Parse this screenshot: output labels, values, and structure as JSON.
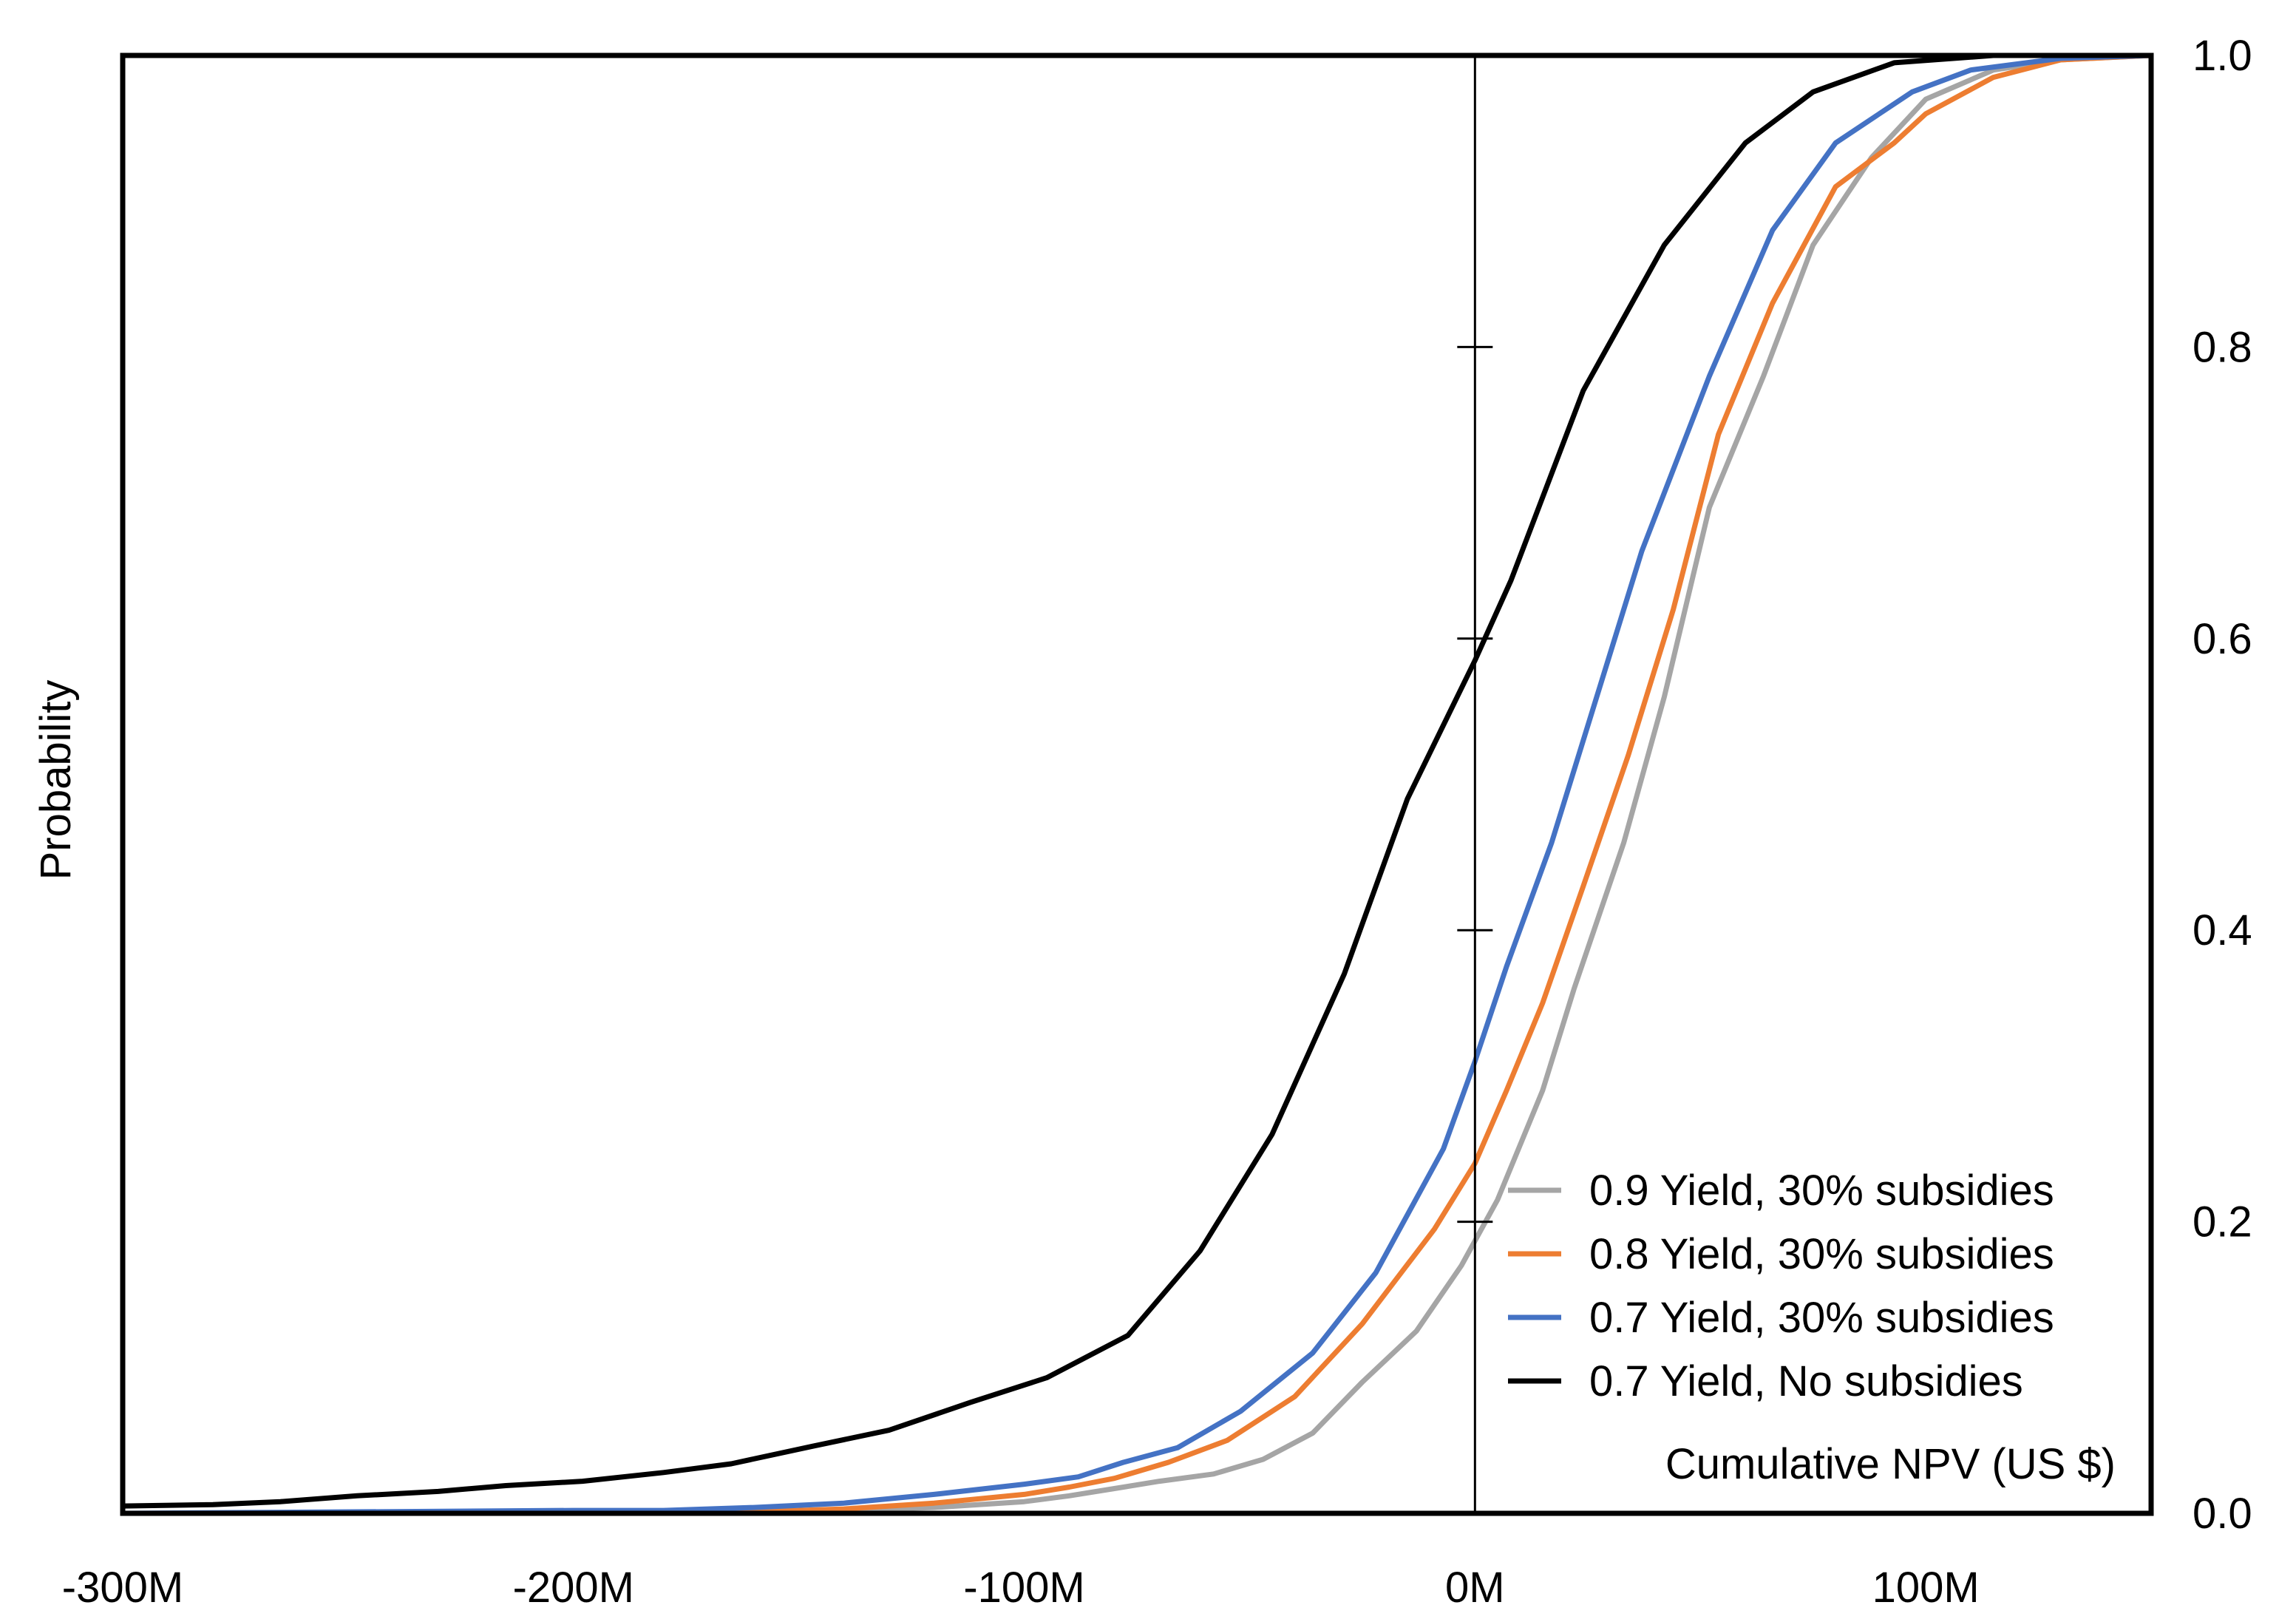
{
  "chart_data": {
    "type": "line",
    "title": "",
    "xlabel": "Cumulative NPV (US $)",
    "ylabel": "Probability",
    "xlim": [
      -300,
      150
    ],
    "ylim": [
      0,
      1
    ],
    "x_unit_suffix": "M",
    "x_ticks": [
      -300,
      -200,
      -100,
      0,
      100
    ],
    "x_tick_labels": [
      "-300M",
      "-200M",
      "-100M",
      "0M",
      "100M"
    ],
    "y_ticks": [
      0,
      0.2,
      0.4,
      0.6,
      0.8,
      1.0
    ],
    "y_tick_labels": [
      "0.0",
      "0.2",
      "0.4",
      "0.6",
      "0.8",
      "1.0"
    ],
    "y_axis_side": "right",
    "y_inner_axis_at_x": 0,
    "grid": false,
    "legend_position": "bottom-right",
    "series": [
      {
        "name": "0.9 Yield, 30% subsidies",
        "color": "#a5a5a5",
        "points": [
          [
            -300,
            0
          ],
          [
            -200,
            0
          ],
          [
            -180,
            0
          ],
          [
            -160,
            0.001
          ],
          [
            -140,
            0.002
          ],
          [
            -120,
            0.004
          ],
          [
            -100,
            0.008
          ],
          [
            -90,
            0.012
          ],
          [
            -80,
            0.017
          ],
          [
            -70,
            0.022
          ],
          [
            -58,
            0.027
          ],
          [
            -47,
            0.037
          ],
          [
            -36,
            0.055
          ],
          [
            -25,
            0.09
          ],
          [
            -13,
            0.125
          ],
          [
            -3,
            0.17
          ],
          [
            5,
            0.215
          ],
          [
            15,
            0.29
          ],
          [
            22,
            0.36
          ],
          [
            33,
            0.46
          ],
          [
            42,
            0.56
          ],
          [
            52,
            0.69
          ],
          [
            64,
            0.78
          ],
          [
            75,
            0.87
          ],
          [
            88,
            0.93
          ],
          [
            100,
            0.97
          ],
          [
            115,
            0.99
          ],
          [
            130,
            0.997
          ],
          [
            150,
            1.0
          ]
        ]
      },
      {
        "name": "0.8 Yield, 30% subsidies",
        "color": "#ed7d31",
        "points": [
          [
            -300,
            0
          ],
          [
            -200,
            0
          ],
          [
            -180,
            0
          ],
          [
            -160,
            0.001
          ],
          [
            -140,
            0.003
          ],
          [
            -120,
            0.007
          ],
          [
            -100,
            0.013
          ],
          [
            -90,
            0.018
          ],
          [
            -80,
            0.024
          ],
          [
            -68,
            0.035
          ],
          [
            -55,
            0.05
          ],
          [
            -40,
            0.08
          ],
          [
            -25,
            0.13
          ],
          [
            -9,
            0.195
          ],
          [
            0,
            0.24
          ],
          [
            7,
            0.29
          ],
          [
            15,
            0.35
          ],
          [
            24,
            0.43
          ],
          [
            34,
            0.52
          ],
          [
            44,
            0.62
          ],
          [
            54,
            0.74
          ],
          [
            66,
            0.83
          ],
          [
            80,
            0.91
          ],
          [
            93,
            0.94
          ],
          [
            100,
            0.96
          ],
          [
            115,
            0.985
          ],
          [
            130,
            0.997
          ],
          [
            150,
            1.0
          ]
        ]
      },
      {
        "name": "0.7 Yield, 30% subsidies",
        "color": "#4472c4",
        "points": [
          [
            -300,
            0
          ],
          [
            -200,
            0.002
          ],
          [
            -180,
            0.002
          ],
          [
            -160,
            0.004
          ],
          [
            -140,
            0.007
          ],
          [
            -120,
            0.013
          ],
          [
            -100,
            0.02
          ],
          [
            -88,
            0.025
          ],
          [
            -78,
            0.035
          ],
          [
            -66,
            0.045
          ],
          [
            -52,
            0.07
          ],
          [
            -36,
            0.11
          ],
          [
            -22,
            0.165
          ],
          [
            -7,
            0.25
          ],
          [
            0,
            0.31
          ],
          [
            7,
            0.375
          ],
          [
            17,
            0.46
          ],
          [
            27,
            0.56
          ],
          [
            37,
            0.66
          ],
          [
            52,
            0.78
          ],
          [
            66,
            0.88
          ],
          [
            80,
            0.94
          ],
          [
            97,
            0.975
          ],
          [
            110,
            0.99
          ],
          [
            130,
            0.998
          ],
          [
            150,
            1.0
          ]
        ]
      },
      {
        "name": "0.7 Yield, No subsidies",
        "color": "#000000",
        "points": [
          [
            -300,
            0.005
          ],
          [
            -280,
            0.006
          ],
          [
            -265,
            0.008
          ],
          [
            -248,
            0.012
          ],
          [
            -230,
            0.015
          ],
          [
            -215,
            0.019
          ],
          [
            -198,
            0.022
          ],
          [
            -180,
            0.028
          ],
          [
            -165,
            0.034
          ],
          [
            -147,
            0.046
          ],
          [
            -130,
            0.057
          ],
          [
            -112,
            0.076
          ],
          [
            -95,
            0.093
          ],
          [
            -77,
            0.122
          ],
          [
            -61,
            0.18
          ],
          [
            -45,
            0.26
          ],
          [
            -29,
            0.37
          ],
          [
            -15,
            0.49
          ],
          [
            0,
            0.585
          ],
          [
            8,
            0.64
          ],
          [
            24,
            0.77
          ],
          [
            42,
            0.87
          ],
          [
            60,
            0.94
          ],
          [
            75,
            0.975
          ],
          [
            93,
            0.995
          ],
          [
            115,
            1.0
          ],
          [
            150,
            1.0
          ]
        ]
      }
    ]
  }
}
